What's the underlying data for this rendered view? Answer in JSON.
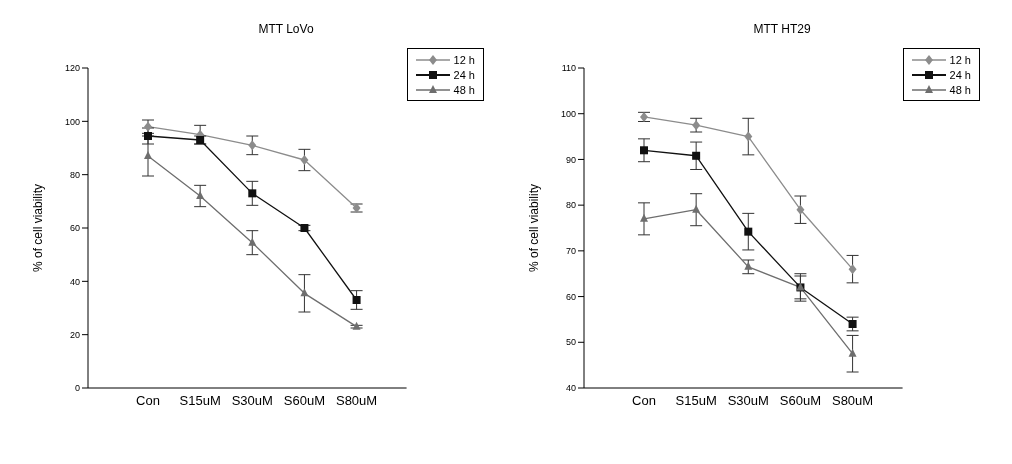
{
  "chart_data": [
    {
      "type": "line",
      "title": "MTT LoVo",
      "ylabel": "% of cell viability",
      "categories": [
        "Con",
        "S15uM",
        "S30uM",
        "S60uM",
        "S80uM"
      ],
      "ylim": [
        0,
        120
      ],
      "yticks": [
        0,
        20,
        40,
        60,
        80,
        100,
        120
      ],
      "grid": false,
      "legend": "top right",
      "series": [
        {
          "name": "12 h",
          "color": "#8c8c8c",
          "marker": "diamond",
          "values": [
            98,
            95,
            91,
            85.5,
            67.5
          ],
          "errors": [
            2.5,
            3.5,
            3.5,
            4,
            1.5
          ]
        },
        {
          "name": "24 h",
          "color": "#111111",
          "marker": "square",
          "values": [
            94.5,
            93,
            73,
            60,
            33
          ],
          "errors": [
            3,
            1.5,
            4.5,
            1,
            3.5
          ]
        },
        {
          "name": "48 h",
          "color": "#6e6e6e",
          "marker": "triangle",
          "values": [
            87,
            72,
            54.5,
            35.5,
            23
          ],
          "errors": [
            7.5,
            4,
            4.5,
            7,
            0.5
          ]
        }
      ]
    },
    {
      "type": "line",
      "title": "MTT HT29",
      "ylabel": "% of cell viability",
      "categories": [
        "Con",
        "S15uM",
        "S30uM",
        "S60uM",
        "S80uM"
      ],
      "ylim": [
        40,
        110
      ],
      "yticks": [
        40,
        50,
        60,
        70,
        80,
        90,
        100,
        110
      ],
      "grid": false,
      "legend": "top right",
      "series": [
        {
          "name": "12 h",
          "color": "#8c8c8c",
          "marker": "diamond",
          "values": [
            99.3,
            97.5,
            95,
            79,
            66
          ],
          "errors": [
            1,
            1.5,
            4,
            3,
            3
          ]
        },
        {
          "name": "24 h",
          "color": "#111111",
          "marker": "square",
          "values": [
            92,
            90.8,
            74.2,
            62,
            54
          ],
          "errors": [
            2.5,
            3,
            4,
            2.5,
            1.5
          ]
        },
        {
          "name": "48 h",
          "color": "#6e6e6e",
          "marker": "triangle",
          "values": [
            77,
            79,
            66.5,
            62,
            47.5
          ],
          "errors": [
            3.5,
            3.5,
            1.5,
            3,
            4
          ]
        }
      ]
    }
  ]
}
